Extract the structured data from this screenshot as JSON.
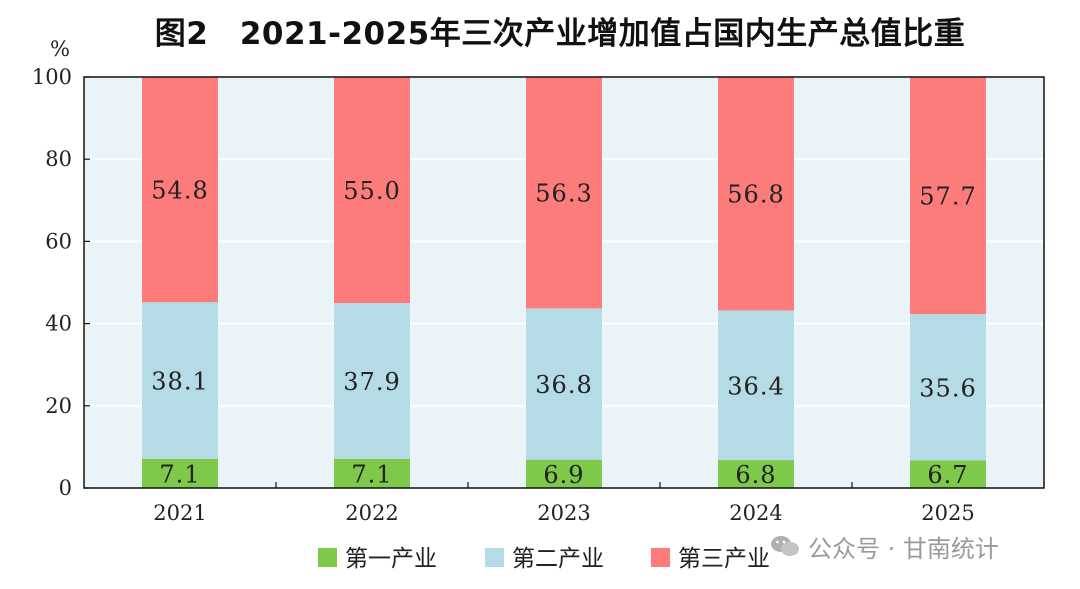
{
  "chart_data": {
    "type": "bar",
    "stacked": true,
    "title": "图2　2021-2025年三次产业增加值占国内生产总值比重",
    "ylabel": "%",
    "ylim": [
      0,
      100
    ],
    "yticks": [
      "0",
      "20",
      "40",
      "60",
      "80",
      "100"
    ],
    "categories": [
      "2021",
      "2022",
      "2023",
      "2024",
      "2025"
    ],
    "series": [
      {
        "name": "第一产业",
        "color": "#7ec94a",
        "values": [
          7.1,
          7.1,
          6.9,
          6.8,
          6.7
        ],
        "labels": [
          "7.1",
          "7.1",
          "6.9",
          "6.8",
          "6.7"
        ]
      },
      {
        "name": "第二产业",
        "color": "#b5dbe6",
        "values": [
          38.1,
          37.9,
          36.8,
          36.4,
          35.6
        ],
        "labels": [
          "38.1",
          "37.9",
          "36.8",
          "36.4",
          "35.6"
        ]
      },
      {
        "name": "第三产业",
        "color": "#fc7b7b",
        "values": [
          54.8,
          55.0,
          56.3,
          56.8,
          57.7
        ],
        "labels": [
          "54.8",
          "55.0",
          "56.3",
          "56.8",
          "57.7"
        ]
      }
    ],
    "plot_background": "#eaf4f8",
    "grid": true,
    "legend_position": "bottom"
  },
  "watermark": {
    "icon": "wechat-icon",
    "text": "公众号 · 甘南统计"
  }
}
